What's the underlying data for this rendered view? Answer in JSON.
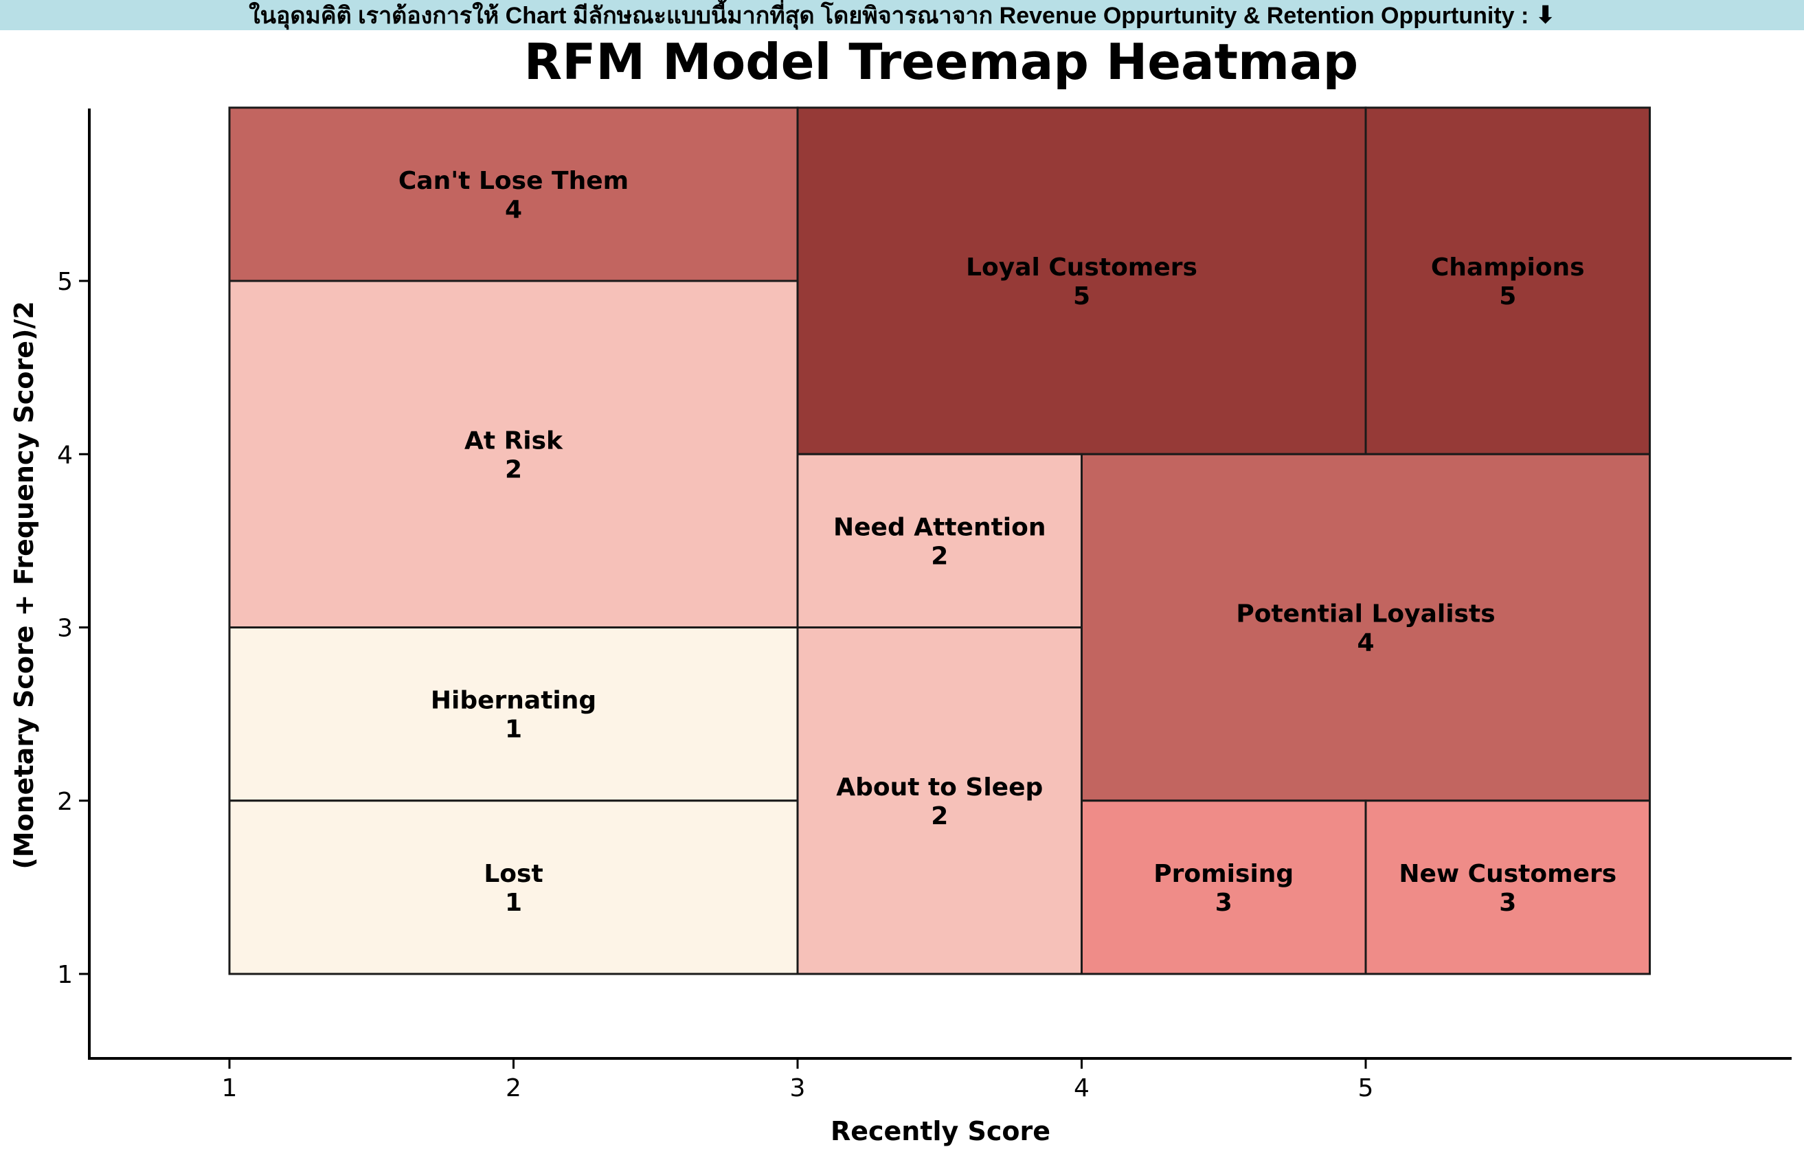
{
  "banner": {
    "text": "ในอุดมคิติ เราต้องการให้ Chart มีลักษณะแบบนี้มากที่สุด โดยพิจารณาจาก Revenue Oppurtunity & Retention Oppurtunity :",
    "arrow_icon": "down-arrow-icon"
  },
  "chart_data": {
    "type": "heatmap",
    "title": "RFM Model Treemap Heatmap",
    "xlabel": "Recently Score",
    "ylabel": "(Monetary Score + Frequency Score)/2",
    "xlim": [
      0.5,
      6.5
    ],
    "ylim": [
      0.5,
      6
    ],
    "xticks": [
      1,
      2,
      3,
      4,
      5
    ],
    "yticks": [
      1,
      2,
      3,
      4,
      5
    ],
    "colors": {
      "1": "#fdf4e7",
      "2": "#f6c1b9",
      "3": "#ef8c88",
      "4": "#c26560",
      "5": "#963a37"
    },
    "segments": [
      {
        "name": "Can't Lose Them",
        "value": 4,
        "x0": 1,
        "x1": 3,
        "y0": 5,
        "y1": 6
      },
      {
        "name": "Loyal Customers",
        "value": 5,
        "x0": 3,
        "x1": 5,
        "y0": 4,
        "y1": 6
      },
      {
        "name": "Champions",
        "value": 5,
        "x0": 5,
        "x1": 6,
        "y0": 4,
        "y1": 6
      },
      {
        "name": "At Risk",
        "value": 2,
        "x0": 1,
        "x1": 3,
        "y0": 3,
        "y1": 5
      },
      {
        "name": "Need Attention",
        "value": 2,
        "x0": 3,
        "x1": 4,
        "y0": 3,
        "y1": 4
      },
      {
        "name": "Potential Loyalists",
        "value": 4,
        "x0": 4,
        "x1": 6,
        "y0": 2,
        "y1": 4
      },
      {
        "name": "Hibernating",
        "value": 1,
        "x0": 1,
        "x1": 3,
        "y0": 2,
        "y1": 3
      },
      {
        "name": "About to Sleep",
        "value": 2,
        "x0": 3,
        "x1": 4,
        "y0": 1,
        "y1": 3
      },
      {
        "name": "Lost",
        "value": 1,
        "x0": 1,
        "x1": 3,
        "y0": 1,
        "y1": 2
      },
      {
        "name": "Promising",
        "value": 3,
        "x0": 4,
        "x1": 5,
        "y0": 1,
        "y1": 2
      },
      {
        "name": "New Customers",
        "value": 3,
        "x0": 5,
        "x1": 6,
        "y0": 1,
        "y1": 2
      }
    ]
  }
}
